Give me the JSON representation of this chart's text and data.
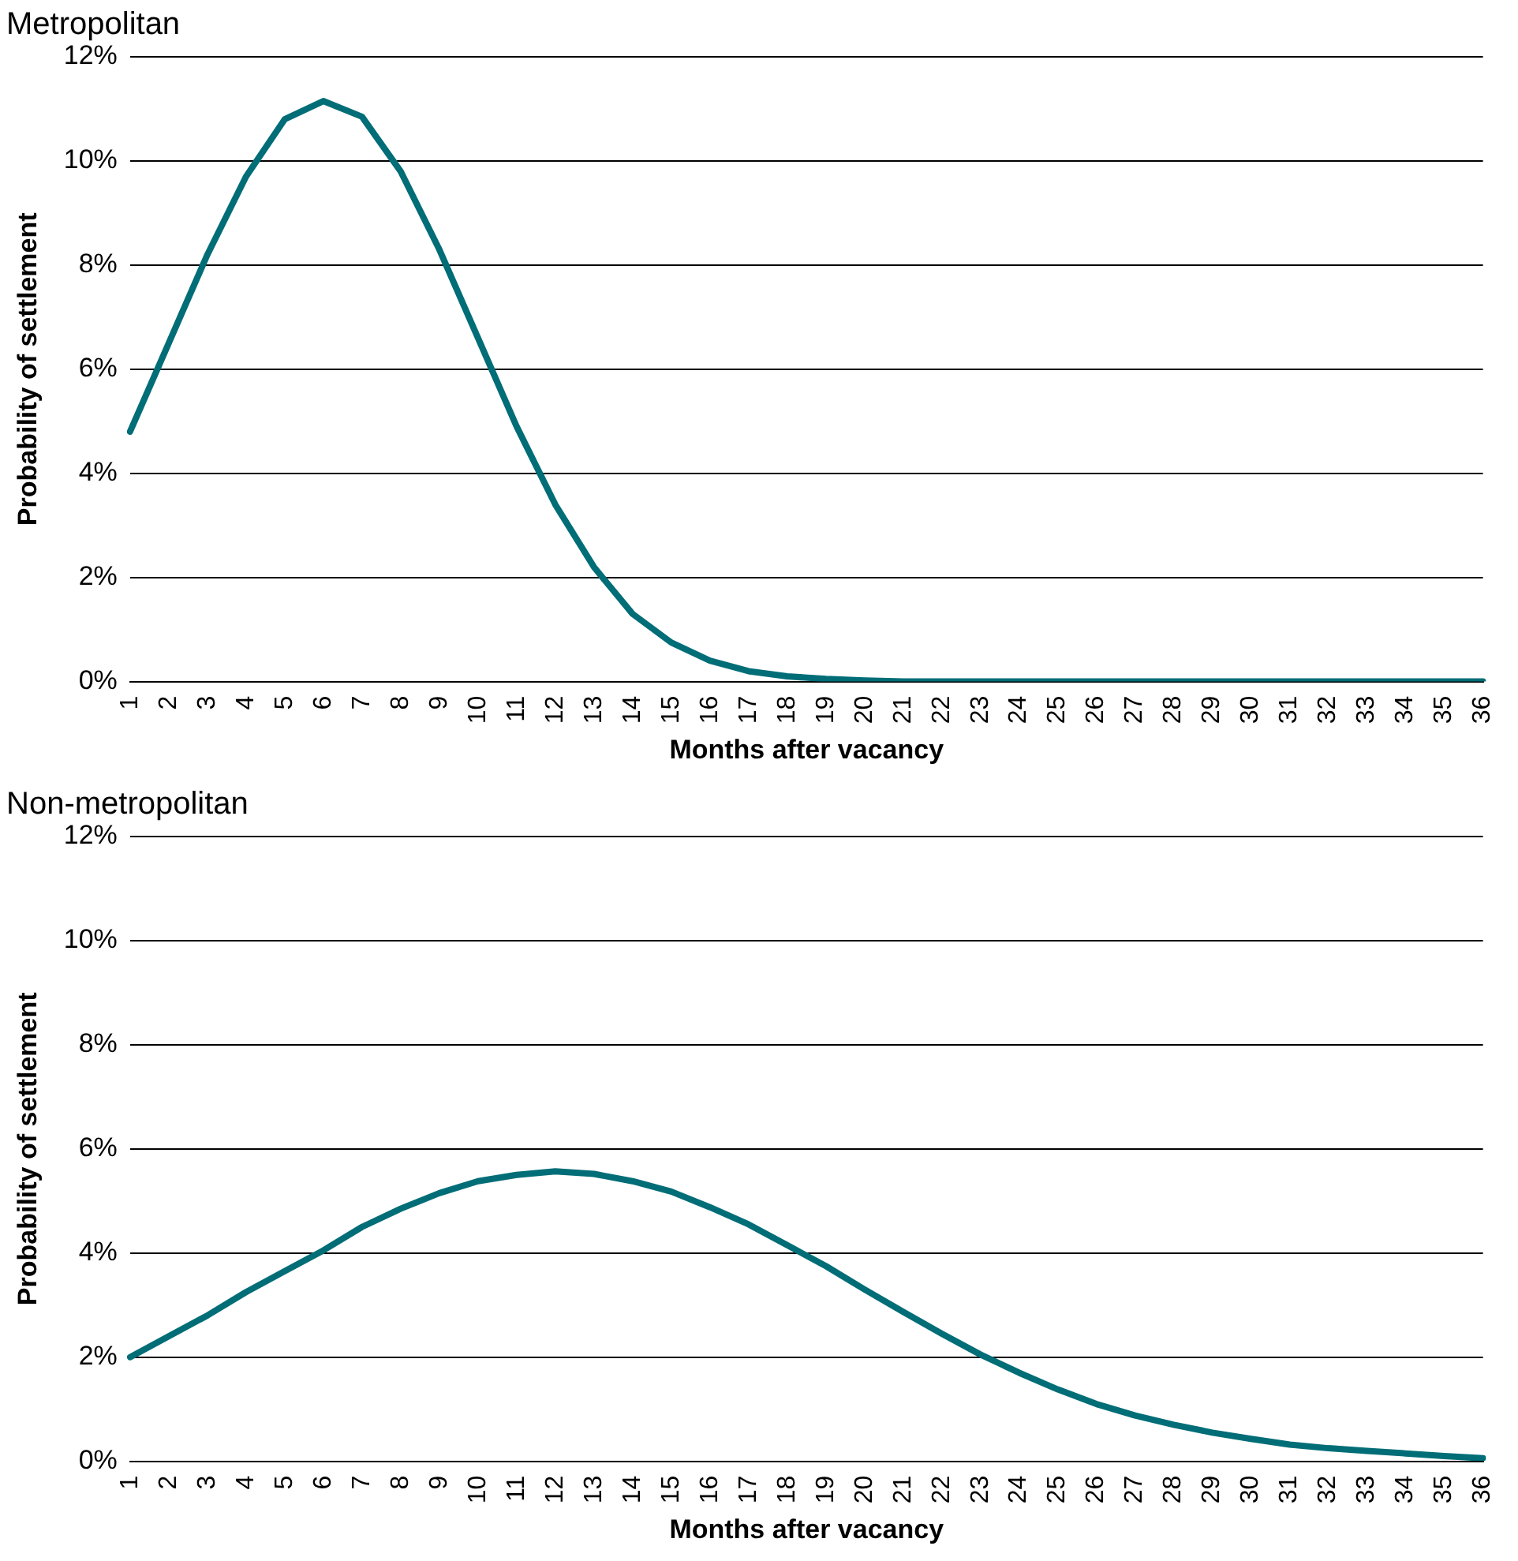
{
  "chart_data": [
    {
      "type": "line",
      "title": "Metropolitan",
      "xlabel": "Months after vacancy",
      "ylabel": "Probability of settlement",
      "categories": [
        "1",
        "2",
        "3",
        "4",
        "5",
        "6",
        "7",
        "8",
        "9",
        "10",
        "11",
        "12",
        "13",
        "14",
        "15",
        "16",
        "17",
        "18",
        "19",
        "20",
        "21",
        "22",
        "23",
        "24",
        "25",
        "26",
        "27",
        "28",
        "29",
        "30",
        "31",
        "32",
        "33",
        "34",
        "35",
        "36"
      ],
      "series": [
        {
          "color": "#006d77",
          "values": [
            4.8,
            6.5,
            8.2,
            9.7,
            10.8,
            11.15,
            10.85,
            9.8,
            8.3,
            6.6,
            4.9,
            3.4,
            2.2,
            1.3,
            0.75,
            0.4,
            0.2,
            0.1,
            0.05,
            0.02,
            0,
            0,
            0,
            0,
            0,
            0,
            0,
            0,
            0,
            0,
            0,
            0,
            0,
            0,
            0,
            0
          ]
        }
      ],
      "ylim": [
        0,
        12
      ],
      "yticks": [
        {
          "value": 0,
          "label": "0%"
        },
        {
          "value": 2,
          "label": "2%"
        },
        {
          "value": 4,
          "label": "4%"
        },
        {
          "value": 6,
          "label": "6%"
        },
        {
          "value": 8,
          "label": "8%"
        },
        {
          "value": 10,
          "label": "10%"
        },
        {
          "value": 12,
          "label": "12%"
        }
      ],
      "grid": "y",
      "legend": false,
      "marker": "none",
      "line_style": "solid"
    },
    {
      "type": "line",
      "title": "Non-metropolitan",
      "xlabel": "Months after vacancy",
      "ylabel": "Probability of settlement",
      "categories": [
        "1",
        "2",
        "3",
        "4",
        "5",
        "6",
        "7",
        "8",
        "9",
        "10",
        "11",
        "12",
        "13",
        "14",
        "15",
        "16",
        "17",
        "18",
        "19",
        "20",
        "21",
        "22",
        "23",
        "24",
        "25",
        "26",
        "27",
        "28",
        "29",
        "30",
        "31",
        "32",
        "33",
        "34",
        "35",
        "36"
      ],
      "series": [
        {
          "color": "#006d77",
          "values": [
            2.0,
            2.4,
            2.8,
            3.25,
            3.65,
            4.05,
            4.5,
            4.85,
            5.15,
            5.38,
            5.5,
            5.57,
            5.52,
            5.38,
            5.18,
            4.88,
            4.55,
            4.15,
            3.75,
            3.3,
            2.87,
            2.45,
            2.05,
            1.7,
            1.38,
            1.1,
            0.88,
            0.7,
            0.55,
            0.43,
            0.32,
            0.25,
            0.2,
            0.15,
            0.1,
            0.06
          ]
        }
      ],
      "ylim": [
        0,
        12
      ],
      "yticks": [
        {
          "value": 0,
          "label": "0%"
        },
        {
          "value": 2,
          "label": "2%"
        },
        {
          "value": 4,
          "label": "4%"
        },
        {
          "value": 6,
          "label": "6%"
        },
        {
          "value": 8,
          "label": "8%"
        },
        {
          "value": 10,
          "label": "10%"
        },
        {
          "value": 12,
          "label": "12%"
        }
      ],
      "grid": "y",
      "legend": false,
      "marker": "none",
      "line_style": "solid"
    }
  ]
}
